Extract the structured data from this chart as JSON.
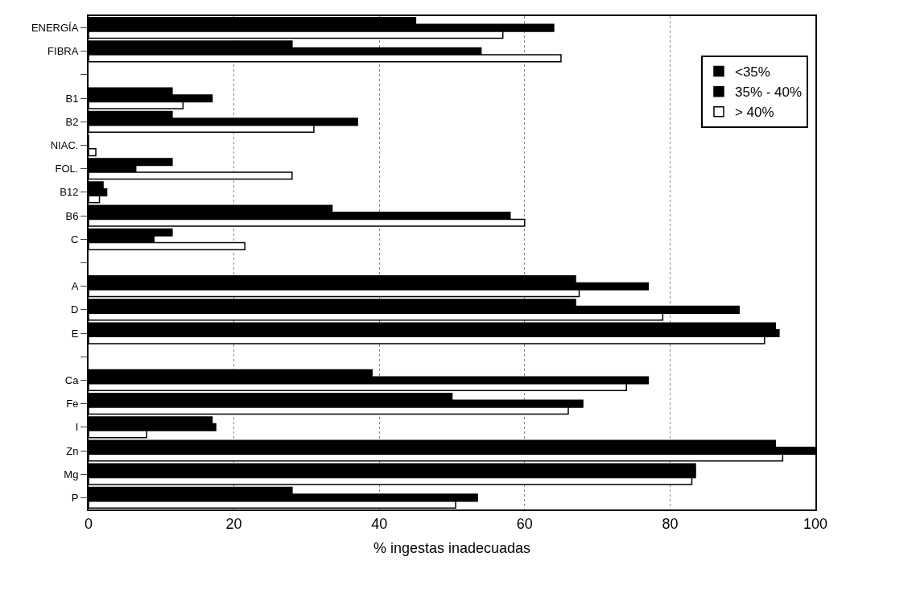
{
  "chart_data": {
    "type": "bar",
    "orientation": "horizontal",
    "xlabel": "% ingestas inadecuadas",
    "categories": [
      "ENERGÍA",
      "FIBRA",
      null,
      "B1",
      "B2",
      "NIAC.",
      "FOL.",
      "B12",
      "B6",
      "C",
      null,
      "A",
      "D",
      "E",
      null,
      "Ca",
      "Fe",
      "I",
      "Zn",
      "Mg",
      "P"
    ],
    "series": [
      {
        "name": "<35%",
        "color": "#000000",
        "values": [
          45,
          28,
          null,
          11.5,
          11.5,
          0,
          11.5,
          2,
          33.5,
          11.5,
          null,
          67,
          67,
          94.5,
          null,
          39,
          50,
          17,
          94.5,
          83.5,
          28
        ]
      },
      {
        "name": "35% - 40%",
        "color": "#000000",
        "values": [
          64,
          54,
          null,
          17,
          37,
          0,
          6.5,
          2.5,
          58,
          9,
          null,
          77,
          89.5,
          95,
          null,
          77,
          68,
          17.5,
          100,
          83.5,
          53.5
        ]
      },
      {
        "name": "> 40%",
        "color": "#ffffff",
        "values": [
          57,
          65,
          null,
          13,
          31,
          1,
          28,
          1.5,
          60,
          21.5,
          null,
          67.5,
          79,
          93,
          null,
          74,
          66,
          8,
          95.5,
          83,
          50.5
        ]
      }
    ],
    "xlim": [
      0,
      100
    ],
    "xticks": [
      0,
      20,
      40,
      60,
      80,
      100
    ],
    "grid": "x",
    "legend": "top right"
  }
}
